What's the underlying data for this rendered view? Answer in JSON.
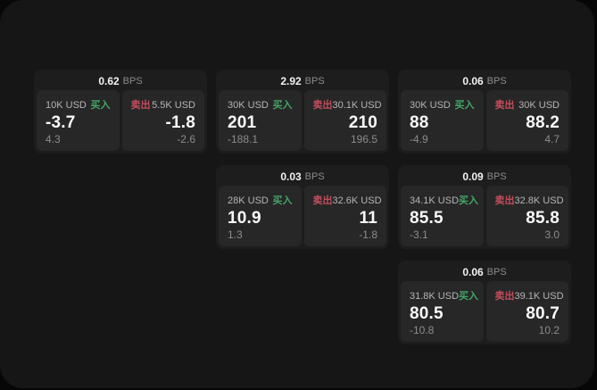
{
  "labels": {
    "bps": "BPS",
    "buy": "买入",
    "sell": "卖出"
  },
  "colors": {
    "page_bg": "#070707",
    "panel_bg": "#161616",
    "card_bg": "#1d1d1d",
    "tile_bg": "#272727",
    "buy_accent": "#43a565",
    "sell_accent": "#c34d5c"
  },
  "cards": [
    {
      "bps": "0.62",
      "buy": {
        "amount": "10K USD",
        "value": "-3.7",
        "delta": "4.3"
      },
      "sell": {
        "amount": "5.5K USD",
        "value": "-1.8",
        "delta": "-2.6"
      }
    },
    {
      "bps": "2.92",
      "buy": {
        "amount": "30K USD",
        "value": "201",
        "delta": "-188.1"
      },
      "sell": {
        "amount": "30.1K USD",
        "value": "210",
        "delta": "196.5"
      }
    },
    {
      "bps": "0.06",
      "buy": {
        "amount": "30K USD",
        "value": "88",
        "delta": "-4.9"
      },
      "sell": {
        "amount": "30K USD",
        "value": "88.2",
        "delta": "4.7"
      }
    },
    {
      "bps": "0.03",
      "buy": {
        "amount": "28K USD",
        "value": "10.9",
        "delta": "1.3"
      },
      "sell": {
        "amount": "32.6K USD",
        "value": "11",
        "delta": "-1.8"
      }
    },
    {
      "bps": "0.09",
      "buy": {
        "amount": "34.1K USD",
        "value": "85.5",
        "delta": "-3.1"
      },
      "sell": {
        "amount": "32.8K USD",
        "value": "85.8",
        "delta": "3.0"
      }
    },
    {
      "bps": "0.06",
      "buy": {
        "amount": "31.8K USD",
        "value": "80.5",
        "delta": "-10.8"
      },
      "sell": {
        "amount": "39.1K USD",
        "value": "80.7",
        "delta": "10.2"
      }
    }
  ]
}
